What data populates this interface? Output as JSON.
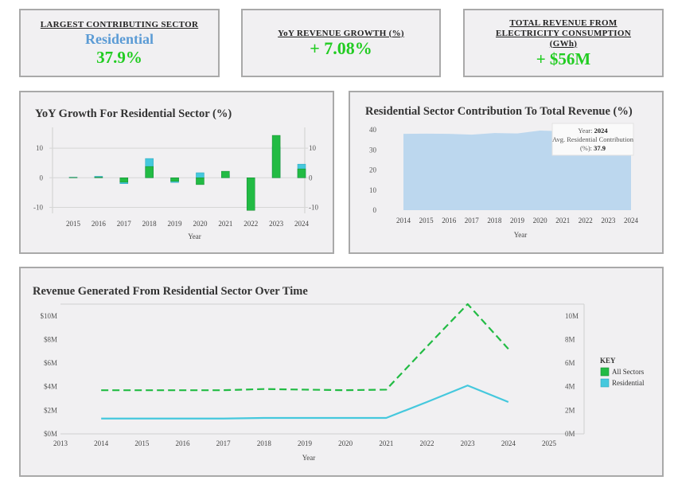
{
  "kpis": {
    "sector": {
      "title": "LARGEST CONTRIBUTING SECTOR",
      "name": "Residential",
      "value": "37.9%"
    },
    "growth": {
      "title": "YoY REVENUE GROWTH (%)",
      "value": "+ 7.08%"
    },
    "revenue": {
      "title_line1": "TOTAL REVENUE  FROM",
      "title_line2": "ELECTRICITY CONSUMPTION",
      "title_line3": "(GWh)",
      "value": "+ $56M"
    }
  },
  "colors": {
    "green": "#22bb44",
    "cyan": "#45c8dd",
    "area": "#bcd7ee",
    "kpi_green": "#22cc22",
    "kpi_blue": "#5b9bd5"
  },
  "chart_data": [
    {
      "type": "bar",
      "title": "YoY Growth For Residential Sector (%)",
      "xlabel": "Year",
      "ylim": [
        -12,
        17
      ],
      "y_ticks": [
        -10,
        0,
        10
      ],
      "categories": [
        "2015",
        "2016",
        "2017",
        "2018",
        "2019",
        "2020",
        "2021",
        "2022",
        "2023",
        "2024"
      ],
      "series": [
        {
          "name": "All Sectors",
          "values": [
            0.1,
            0.2,
            -1.5,
            3.8,
            -1.2,
            -2.3,
            2.2,
            -11,
            14.3,
            3.0
          ]
        },
        {
          "name": "Residential",
          "values": [
            0.2,
            0.5,
            -2.0,
            6.5,
            -1.6,
            1.7,
            1.0,
            -5.5,
            10.5,
            4.6
          ]
        }
      ]
    },
    {
      "type": "area",
      "title": "Residential Sector Contribution To Total Revenue (%)",
      "xlabel": "Year",
      "ylim": [
        0,
        42
      ],
      "y_ticks": [
        0,
        10,
        20,
        30,
        40
      ],
      "x": [
        "2014",
        "2015",
        "2016",
        "2017",
        "2018",
        "2019",
        "2020",
        "2021",
        "2022",
        "2023",
        "2024"
      ],
      "values": [
        38.0,
        38.1,
        38.0,
        37.6,
        38.4,
        38.2,
        39.6,
        39.3,
        38.9,
        38.3,
        37.9
      ],
      "tooltip": {
        "year_label": "Year:",
        "year": "2024",
        "metric_label_1": "Avg. Residential Contribution",
        "metric_label_2": "(%):",
        "value": "37.9"
      }
    },
    {
      "type": "line",
      "title": "Revenue Generated From Residential Sector Over Time",
      "xlabel": "Year",
      "x_ticks": [
        "2013",
        "2014",
        "2015",
        "2016",
        "2017",
        "2018",
        "2019",
        "2020",
        "2021",
        "2022",
        "2023",
        "2024",
        "2025"
      ],
      "y_ticks_left": [
        "$0M",
        "$2M",
        "$4M",
        "$6M",
        "$8M",
        "$10M"
      ],
      "y_ticks_right": [
        "0M",
        "2M",
        "4M",
        "6M",
        "8M",
        "10M"
      ],
      "ylim": [
        0,
        11
      ],
      "x": [
        2014,
        2015,
        2016,
        2017,
        2018,
        2019,
        2020,
        2021,
        2022,
        2023,
        2024
      ],
      "series": [
        {
          "name": "All Sectors",
          "style": "dashed",
          "values": [
            3.7,
            3.7,
            3.7,
            3.7,
            3.8,
            3.75,
            3.7,
            3.75,
            7.4,
            11.0,
            7.2
          ]
        },
        {
          "name": "Residential",
          "style": "solid",
          "values": [
            1.3,
            1.3,
            1.3,
            1.3,
            1.35,
            1.35,
            1.35,
            1.35,
            2.7,
            4.1,
            2.7
          ]
        }
      ],
      "legend": {
        "title": "KEY",
        "position": "right"
      }
    }
  ]
}
